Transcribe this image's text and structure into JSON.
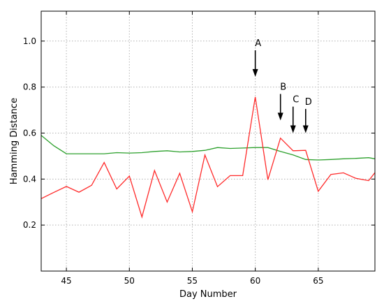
{
  "chart_data": {
    "type": "line",
    "xlabel": "Day Number",
    "ylabel": "Hamming Distance",
    "xlim": [
      43,
      69.5
    ],
    "ylim": [
      0.0,
      1.13
    ],
    "grid": true,
    "x_ticks": [
      45,
      50,
      55,
      60,
      65
    ],
    "x_tick_labels": [
      "45",
      "50",
      "55",
      "60",
      "65"
    ],
    "y_ticks": [
      0.2,
      0.4,
      0.6,
      0.8,
      1.0
    ],
    "y_tick_labels": [
      "0.2",
      "0.4",
      "0.6",
      "0.8",
      "1.0"
    ],
    "series": [
      {
        "color": "#2ca02c",
        "x": [
          43,
          44,
          45,
          46,
          47,
          48,
          49,
          50,
          51,
          52,
          53,
          54,
          55,
          56,
          57,
          58,
          59,
          60,
          61,
          62,
          63,
          64,
          65,
          66,
          67,
          68,
          69,
          69.5
        ],
        "values": [
          0.59,
          0.545,
          0.51,
          0.51,
          0.51,
          0.51,
          0.515,
          0.513,
          0.515,
          0.52,
          0.523,
          0.518,
          0.52,
          0.525,
          0.537,
          0.533,
          0.535,
          0.537,
          0.537,
          0.52,
          0.505,
          0.485,
          0.483,
          0.485,
          0.488,
          0.49,
          0.493,
          0.488
        ]
      },
      {
        "color": "#ff2a2a",
        "x": [
          43,
          44,
          45,
          46,
          47,
          48,
          49,
          50,
          51,
          52,
          53,
          54,
          55,
          56,
          57,
          58,
          59,
          60,
          61,
          62,
          63,
          64,
          65,
          66,
          67,
          68,
          69,
          69.5
        ],
        "values": [
          0.315,
          0.342,
          0.368,
          0.343,
          0.373,
          0.472,
          0.357,
          0.413,
          0.235,
          0.437,
          0.3,
          0.425,
          0.258,
          0.505,
          0.367,
          0.415,
          0.415,
          0.757,
          0.397,
          0.578,
          0.523,
          0.525,
          0.347,
          0.42,
          0.427,
          0.403,
          0.393,
          0.428
        ]
      }
    ],
    "annotations": [
      {
        "label": "A",
        "x": 60,
        "tip_y": 0.845,
        "tail_y": 0.96
      },
      {
        "label": "B",
        "x": 62,
        "tip_y": 0.655,
        "tail_y": 0.77
      },
      {
        "label": "C",
        "x": 63,
        "tip_y": 0.6,
        "tail_y": 0.715
      },
      {
        "label": "D",
        "x": 64,
        "tip_y": 0.6,
        "tail_y": 0.705
      }
    ]
  }
}
